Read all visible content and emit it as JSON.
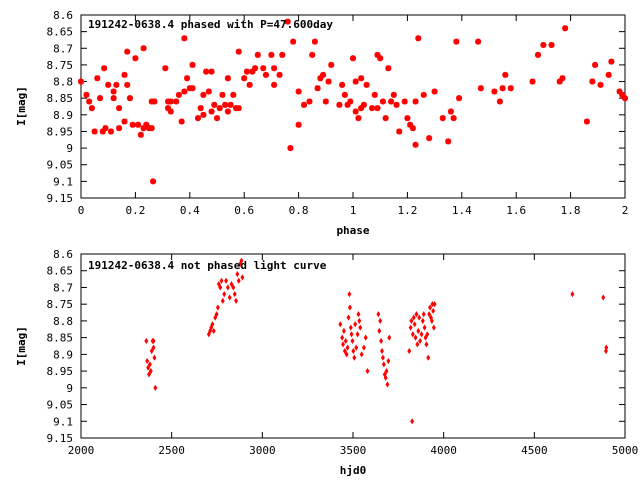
{
  "chart_data": [
    {
      "type": "scatter",
      "title": "191242-0638.4 phased with P=47.600day",
      "xlabel": "phase",
      "ylabel": "I[mag]",
      "xlim": [
        0,
        2
      ],
      "ylim": [
        8.6,
        9.15
      ],
      "y_inverted": true,
      "grid": false,
      "marker": "star",
      "color": "#ff0000",
      "x_ticks": [
        "0",
        "0.2",
        "0.4",
        "0.6",
        "0.8",
        "1",
        "1.2",
        "1.4",
        "1.6",
        "1.8",
        "2"
      ],
      "y_ticks": [
        "8.6",
        "8.65",
        "8.7",
        "8.75",
        "8.8",
        "8.85",
        "8.9",
        "8.95",
        "9",
        "9.05",
        "9.1",
        "9.15"
      ],
      "points": [
        [
          0.0,
          8.8
        ],
        [
          0.02,
          8.84
        ],
        [
          0.03,
          8.86
        ],
        [
          0.04,
          8.88
        ],
        [
          0.05,
          8.95
        ],
        [
          0.06,
          8.79
        ],
        [
          0.07,
          8.85
        ],
        [
          0.08,
          8.95
        ],
        [
          0.085,
          8.76
        ],
        [
          0.09,
          8.94
        ],
        [
          0.1,
          8.81
        ],
        [
          0.11,
          8.95
        ],
        [
          0.12,
          8.83
        ],
        [
          0.12,
          8.85
        ],
        [
          0.13,
          8.81
        ],
        [
          0.14,
          8.88
        ],
        [
          0.14,
          8.94
        ],
        [
          0.16,
          8.92
        ],
        [
          0.16,
          8.78
        ],
        [
          0.17,
          8.81
        ],
        [
          0.17,
          8.71
        ],
        [
          0.18,
          8.85
        ],
        [
          0.19,
          8.93
        ],
        [
          0.2,
          8.73
        ],
        [
          0.21,
          8.93
        ],
        [
          0.22,
          8.96
        ],
        [
          0.23,
          8.7
        ],
        [
          0.23,
          8.94
        ],
        [
          0.24,
          8.93
        ],
        [
          0.25,
          8.94
        ],
        [
          0.26,
          8.94
        ],
        [
          0.27,
          8.86
        ],
        [
          0.26,
          8.86
        ],
        [
          0.265,
          9.1
        ],
        [
          0.31,
          8.76
        ],
        [
          0.32,
          8.86
        ],
        [
          0.32,
          8.88
        ],
        [
          0.33,
          8.89
        ],
        [
          0.33,
          8.86
        ],
        [
          0.35,
          8.86
        ],
        [
          0.36,
          8.84
        ],
        [
          0.37,
          8.92
        ],
        [
          0.38,
          8.83
        ],
        [
          0.38,
          8.67
        ],
        [
          0.39,
          8.79
        ],
        [
          0.4,
          8.82
        ],
        [
          0.41,
          8.82
        ],
        [
          0.41,
          8.75
        ],
        [
          0.43,
          8.91
        ],
        [
          0.44,
          8.88
        ],
        [
          0.45,
          8.9
        ],
        [
          0.45,
          8.84
        ],
        [
          0.46,
          8.77
        ],
        [
          0.47,
          8.83
        ],
        [
          0.48,
          8.77
        ],
        [
          0.48,
          8.89
        ],
        [
          0.49,
          8.87
        ],
        [
          0.5,
          8.91
        ],
        [
          0.51,
          8.88
        ],
        [
          0.52,
          8.84
        ],
        [
          0.53,
          8.87
        ],
        [
          0.54,
          8.79
        ],
        [
          0.54,
          8.89
        ],
        [
          0.55,
          8.87
        ],
        [
          0.56,
          8.84
        ],
        [
          0.57,
          8.88
        ],
        [
          0.58,
          8.88
        ],
        [
          0.58,
          8.71
        ],
        [
          0.6,
          8.79
        ],
        [
          0.61,
          8.77
        ],
        [
          0.62,
          8.81
        ],
        [
          0.63,
          8.77
        ],
        [
          0.64,
          8.76
        ],
        [
          0.65,
          8.72
        ],
        [
          0.67,
          8.76
        ],
        [
          0.68,
          8.78
        ],
        [
          0.7,
          8.72
        ],
        [
          0.71,
          8.81
        ],
        [
          0.71,
          8.76
        ],
        [
          0.73,
          8.78
        ],
        [
          0.74,
          8.72
        ],
        [
          0.76,
          8.62
        ],
        [
          0.77,
          9.0
        ],
        [
          0.78,
          8.68
        ],
        [
          0.8,
          8.93
        ],
        [
          0.8,
          8.83
        ],
        [
          0.82,
          8.87
        ],
        [
          0.84,
          8.86
        ],
        [
          0.85,
          8.72
        ],
        [
          0.86,
          8.68
        ],
        [
          0.87,
          8.82
        ],
        [
          0.89,
          8.78
        ],
        [
          0.88,
          8.79
        ],
        [
          0.9,
          8.86
        ],
        [
          0.91,
          8.8
        ],
        [
          0.92,
          8.75
        ],
        [
          0.95,
          8.87
        ],
        [
          0.96,
          8.81
        ],
        [
          0.97,
          8.84
        ],
        [
          0.98,
          8.87
        ],
        [
          0.99,
          8.86
        ],
        [
          1.0,
          8.73
        ],
        [
          1.01,
          8.8
        ],
        [
          1.01,
          8.89
        ],
        [
          1.02,
          8.91
        ],
        [
          1.03,
          8.79
        ],
        [
          1.03,
          8.88
        ],
        [
          1.04,
          8.87
        ],
        [
          1.05,
          8.81
        ],
        [
          1.07,
          8.88
        ],
        [
          1.08,
          8.84
        ],
        [
          1.09,
          8.88
        ],
        [
          1.09,
          8.72
        ],
        [
          1.1,
          8.73
        ],
        [
          1.11,
          8.86
        ],
        [
          1.12,
          8.91
        ],
        [
          1.13,
          8.76
        ],
        [
          1.14,
          8.86
        ],
        [
          1.15,
          8.84
        ],
        [
          1.16,
          8.87
        ],
        [
          1.17,
          8.95
        ],
        [
          1.19,
          8.86
        ],
        [
          1.2,
          8.91
        ],
        [
          1.21,
          8.93
        ],
        [
          1.22,
          8.94
        ],
        [
          1.23,
          8.86
        ],
        [
          1.23,
          8.99
        ],
        [
          1.24,
          8.67
        ],
        [
          1.26,
          8.84
        ],
        [
          1.28,
          8.97
        ],
        [
          1.3,
          8.83
        ],
        [
          1.33,
          8.91
        ],
        [
          1.35,
          8.98
        ],
        [
          1.36,
          8.89
        ],
        [
          1.37,
          8.91
        ],
        [
          1.38,
          8.68
        ],
        [
          1.39,
          8.85
        ],
        [
          1.46,
          8.68
        ],
        [
          1.47,
          8.82
        ],
        [
          1.52,
          8.83
        ],
        [
          1.54,
          8.86
        ],
        [
          1.55,
          8.82
        ],
        [
          1.56,
          8.78
        ],
        [
          1.58,
          8.82
        ],
        [
          1.66,
          8.8
        ],
        [
          1.68,
          8.72
        ],
        [
          1.7,
          8.69
        ],
        [
          1.73,
          8.69
        ],
        [
          1.77,
          8.79
        ],
        [
          1.76,
          8.8
        ],
        [
          1.78,
          8.64
        ],
        [
          1.86,
          8.92
        ],
        [
          1.88,
          8.8
        ],
        [
          1.89,
          8.75
        ],
        [
          1.91,
          8.81
        ],
        [
          1.94,
          8.78
        ],
        [
          1.95,
          8.74
        ],
        [
          1.98,
          8.83
        ],
        [
          1.99,
          8.84
        ],
        [
          2.0,
          8.85
        ]
      ]
    },
    {
      "type": "scatter",
      "title": "191242-0638.4 not phased light curve",
      "xlabel": "hjd0",
      "ylabel": "I[mag]",
      "xlim": [
        2000,
        5000
      ],
      "ylim": [
        8.6,
        9.15
      ],
      "y_inverted": true,
      "grid": false,
      "marker": "diamond",
      "color": "#ff0000",
      "x_ticks": [
        "2000",
        "2500",
        "3000",
        "3500",
        "4000",
        "4500",
        "5000"
      ],
      "y_ticks": [
        "8.6",
        "8.65",
        "8.7",
        "8.75",
        "8.8",
        "8.85",
        "8.9",
        "8.95",
        "9",
        "9.05",
        "9.1",
        "9.15"
      ],
      "points": [
        [
          2360,
          8.86
        ],
        [
          2365,
          8.92
        ],
        [
          2370,
          8.94
        ],
        [
          2375,
          8.96
        ],
        [
          2380,
          8.93
        ],
        [
          2385,
          8.95
        ],
        [
          2390,
          8.89
        ],
        [
          2395,
          8.86
        ],
        [
          2400,
          8.88
        ],
        [
          2405,
          8.91
        ],
        [
          2410,
          9.0
        ],
        [
          2400,
          8.86
        ],
        [
          2705,
          8.84
        ],
        [
          2712,
          8.83
        ],
        [
          2718,
          8.82
        ],
        [
          2725,
          8.81
        ],
        [
          2732,
          8.83
        ],
        [
          2740,
          8.79
        ],
        [
          2748,
          8.78
        ],
        [
          2755,
          8.76
        ],
        [
          2760,
          8.69
        ],
        [
          2768,
          8.7
        ],
        [
          2775,
          8.68
        ],
        [
          2782,
          8.74
        ],
        [
          2790,
          8.72
        ],
        [
          2800,
          8.68
        ],
        [
          2810,
          8.7
        ],
        [
          2820,
          8.73
        ],
        [
          2830,
          8.69
        ],
        [
          2840,
          8.7
        ],
        [
          2848,
          8.72
        ],
        [
          2855,
          8.74
        ],
        [
          2862,
          8.66
        ],
        [
          2870,
          8.68
        ],
        [
          2878,
          8.63
        ],
        [
          2885,
          8.62
        ],
        [
          2890,
          8.67
        ],
        [
          3430,
          8.81
        ],
        [
          3440,
          8.85
        ],
        [
          3445,
          8.87
        ],
        [
          3450,
          8.83
        ],
        [
          3455,
          8.89
        ],
        [
          3460,
          8.86
        ],
        [
          3465,
          8.9
        ],
        [
          3470,
          8.88
        ],
        [
          3475,
          8.79
        ],
        [
          3480,
          8.72
        ],
        [
          3483,
          8.76
        ],
        [
          3488,
          8.82
        ],
        [
          3492,
          8.84
        ],
        [
          3497,
          8.86
        ],
        [
          3502,
          8.89
        ],
        [
          3507,
          8.91
        ],
        [
          3512,
          8.81
        ],
        [
          3518,
          8.88
        ],
        [
          3525,
          8.84
        ],
        [
          3530,
          8.78
        ],
        [
          3535,
          8.8
        ],
        [
          3540,
          8.82
        ],
        [
          3548,
          8.9
        ],
        [
          3560,
          8.88
        ],
        [
          3570,
          8.85
        ],
        [
          3580,
          8.95
        ],
        [
          3640,
          8.78
        ],
        [
          3645,
          8.83
        ],
        [
          3650,
          8.8
        ],
        [
          3655,
          8.86
        ],
        [
          3660,
          8.89
        ],
        [
          3665,
          8.91
        ],
        [
          3670,
          8.93
        ],
        [
          3675,
          8.96
        ],
        [
          3680,
          8.97
        ],
        [
          3685,
          8.95
        ],
        [
          3690,
          8.99
        ],
        [
          3695,
          8.92
        ],
        [
          3700,
          8.85
        ],
        [
          3810,
          8.89
        ],
        [
          3818,
          8.82
        ],
        [
          3822,
          8.8
        ],
        [
          3826,
          9.1
        ],
        [
          3830,
          8.84
        ],
        [
          3835,
          8.79
        ],
        [
          3840,
          8.81
        ],
        [
          3845,
          8.85
        ],
        [
          3850,
          8.78
        ],
        [
          3855,
          8.87
        ],
        [
          3860,
          8.83
        ],
        [
          3865,
          8.79
        ],
        [
          3870,
          8.86
        ],
        [
          3878,
          8.84
        ],
        [
          3885,
          8.8
        ],
        [
          3890,
          8.78
        ],
        [
          3895,
          8.82
        ],
        [
          3900,
          8.85
        ],
        [
          3905,
          8.87
        ],
        [
          3910,
          8.84
        ],
        [
          3915,
          8.91
        ],
        [
          3920,
          8.78
        ],
        [
          3925,
          8.76
        ],
        [
          3930,
          8.79
        ],
        [
          3935,
          8.8
        ],
        [
          3938,
          8.75
        ],
        [
          3942,
          8.77
        ],
        [
          3946,
          8.82
        ],
        [
          3950,
          8.75
        ],
        [
          4710,
          8.72
        ],
        [
          4880,
          8.73
        ],
        [
          4895,
          8.89
        ],
        [
          4897,
          8.88
        ]
      ]
    }
  ]
}
